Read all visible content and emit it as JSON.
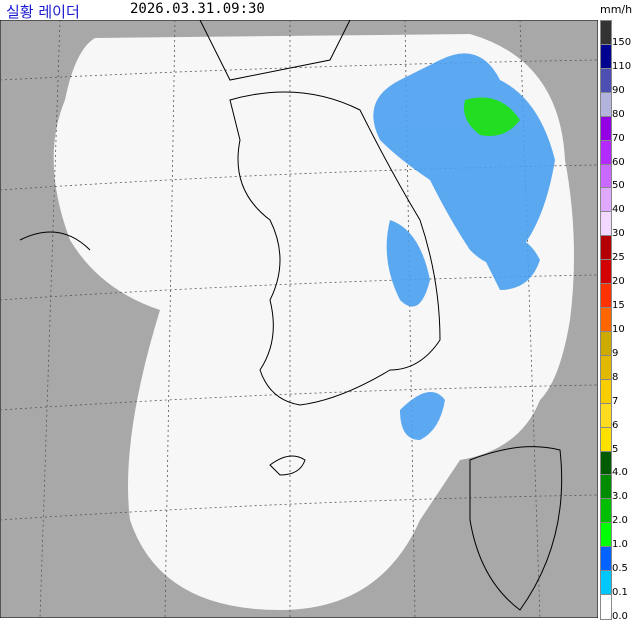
{
  "header": {
    "title": "실황 레이더",
    "timestamp": "2026.03.31.09:30",
    "unit": "mm/h"
  },
  "legend": [
    {
      "label": "150",
      "color": "#333333"
    },
    {
      "label": "110",
      "color": "#000390"
    },
    {
      "label": "90",
      "color": "#4c4eb1"
    },
    {
      "label": "80",
      "color": "#b3b4de"
    },
    {
      "label": "70",
      "color": "#9300e4"
    },
    {
      "label": "60",
      "color": "#b329ff"
    },
    {
      "label": "50",
      "color": "#c969ff"
    },
    {
      "label": "40",
      "color": "#e0a9ff"
    },
    {
      "label": "30",
      "color": "#f3d9ff"
    },
    {
      "label": "25",
      "color": "#b40000"
    },
    {
      "label": "20",
      "color": "#d20000"
    },
    {
      "label": "15",
      "color": "#ff3200"
    },
    {
      "label": "10",
      "color": "#ff6600"
    },
    {
      "label": "9",
      "color": "#ccaa00"
    },
    {
      "label": "8",
      "color": "#e0b900"
    },
    {
      "label": "7",
      "color": "#f9cd00"
    },
    {
      "label": "6",
      "color": "#ffdc1f"
    },
    {
      "label": "5",
      "color": "#ffe100"
    },
    {
      "label": "4.0",
      "color": "#005a00"
    },
    {
      "label": "3.0",
      "color": "#008c00"
    },
    {
      "label": "2.0",
      "color": "#00be00"
    },
    {
      "label": "1.0",
      "color": "#00ff00"
    },
    {
      "label": "0.5",
      "color": "#0063ff"
    },
    {
      "label": "0.1",
      "color": "#00c8ff"
    },
    {
      "label": "0.0",
      "color": "#ffffff"
    }
  ]
}
